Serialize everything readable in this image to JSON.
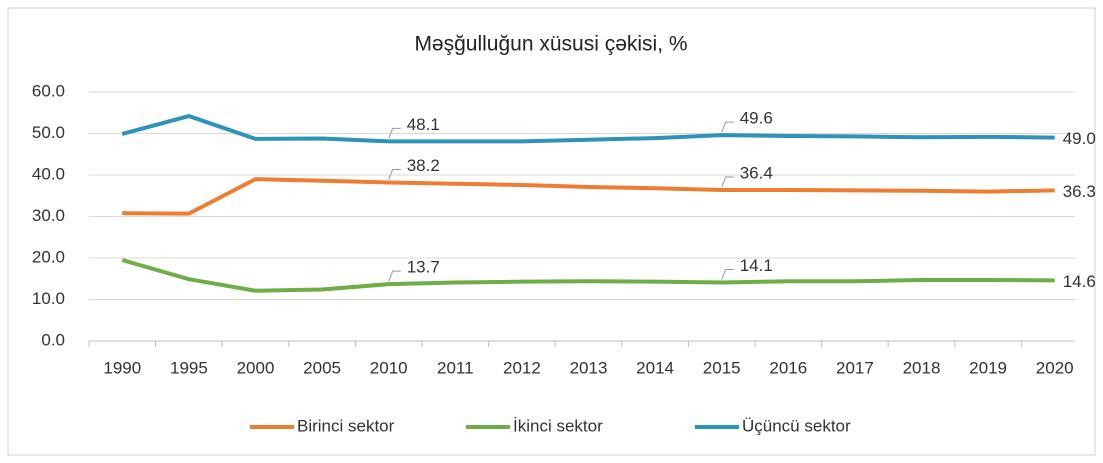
{
  "chart_data": {
    "type": "line",
    "title": "Məşğulluğun xüsusi çəkisi, %",
    "categories": [
      "1990",
      "1995",
      "2000",
      "2005",
      "2010",
      "2011",
      "2012",
      "2013",
      "2014",
      "2015",
      "2016",
      "2017",
      "2018",
      "2019",
      "2020"
    ],
    "series": [
      {
        "name": "Birinci sektor",
        "color": "#ed7d31",
        "values": [
          30.8,
          30.7,
          39.0,
          38.6,
          38.2,
          37.9,
          37.6,
          37.1,
          36.8,
          36.4,
          36.4,
          36.3,
          36.2,
          36.0,
          36.3
        ],
        "value_labels": [
          null,
          null,
          null,
          null,
          "38.2",
          null,
          null,
          null,
          null,
          "36.4",
          null,
          null,
          null,
          null,
          "36.3"
        ]
      },
      {
        "name": "İkinci sektor",
        "color": "#70ad47",
        "values": [
          19.5,
          14.9,
          12.1,
          12.4,
          13.7,
          14.1,
          14.3,
          14.4,
          14.3,
          14.1,
          14.4,
          14.4,
          14.7,
          14.7,
          14.6
        ],
        "value_labels": [
          null,
          null,
          null,
          null,
          "13.7",
          null,
          null,
          null,
          null,
          "14.1",
          null,
          null,
          null,
          null,
          "14.6"
        ]
      },
      {
        "name": "Üçüncü sektor",
        "color": "#2e93b8",
        "values": [
          49.9,
          54.2,
          48.7,
          48.8,
          48.1,
          48.1,
          48.1,
          48.5,
          48.9,
          49.6,
          49.4,
          49.3,
          49.1,
          49.2,
          49.0
        ],
        "value_labels": [
          null,
          null,
          null,
          null,
          "48.1",
          null,
          null,
          null,
          null,
          "49.6",
          null,
          null,
          null,
          null,
          "49.0"
        ]
      }
    ],
    "ylim": [
      0,
      60
    ],
    "yticks": [
      {
        "value": 0,
        "label": "0.0"
      },
      {
        "value": 10,
        "label": "10.0"
      },
      {
        "value": 20,
        "label": "20.0"
      },
      {
        "value": 30,
        "label": "30.0"
      },
      {
        "value": 40,
        "label": "40.0"
      },
      {
        "value": 50,
        "label": "50.0"
      },
      {
        "value": 60,
        "label": "60.0"
      }
    ],
    "grid": true,
    "legend": "bottom"
  }
}
